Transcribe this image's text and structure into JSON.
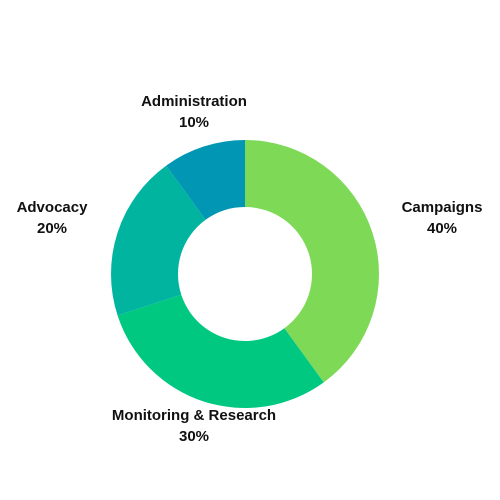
{
  "chart_data": {
    "type": "pie",
    "donut": true,
    "slices": [
      {
        "label": "Campaigns",
        "value": 40,
        "value_label": "40%",
        "color": "#7ED957"
      },
      {
        "label": "Monitoring & Research",
        "value": 30,
        "value_label": "30%",
        "color": "#00C880"
      },
      {
        "label": "Advocacy",
        "value": 20,
        "value_label": "20%",
        "color": "#00B4A0"
      },
      {
        "label": "Administration",
        "value": 10,
        "value_label": "10%",
        "color": "#0096B4"
      }
    ],
    "start": "top",
    "direction": "clockwise",
    "legend": "none",
    "labels_position": "outside"
  }
}
